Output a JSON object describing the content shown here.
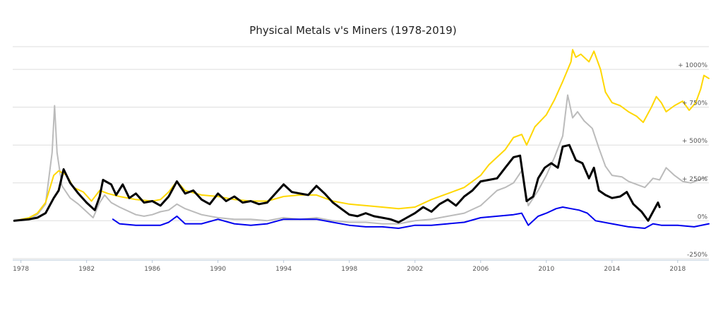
{
  "chart_data": {
    "type": "line",
    "title": "Physical Metals v's Miners (1978-2019)",
    "xlabel": "",
    "ylabel": "",
    "x_ticks": [
      "1978",
      "1982",
      "1986",
      "1990",
      "1994",
      "1998",
      "2002",
      "2006",
      "2010",
      "2014",
      "2018"
    ],
    "y_ticks": [
      "+ 1000%",
      "+ 750%",
      "+ 500%",
      "+ 250%",
      "0%",
      "-250%"
    ],
    "y_tick_values": [
      1000,
      750,
      500,
      250,
      0,
      -250
    ],
    "xlim": [
      1977.5,
      2019.9
    ],
    "ylim": [
      -260,
      1150
    ],
    "grid": true,
    "legend": "none",
    "series": [
      {
        "color": "#bbbbbb",
        "width": 2,
        "points": [
          [
            1977.6,
            0
          ],
          [
            1978.5,
            10
          ],
          [
            1979.0,
            40
          ],
          [
            1979.5,
            110
          ],
          [
            1979.9,
            450
          ],
          [
            1980.05,
            760
          ],
          [
            1980.2,
            450
          ],
          [
            1980.5,
            230
          ],
          [
            1981.0,
            150
          ],
          [
            1981.5,
            110
          ],
          [
            1982.0,
            60
          ],
          [
            1982.4,
            20
          ],
          [
            1982.8,
            120
          ],
          [
            1983.1,
            170
          ],
          [
            1983.5,
            120
          ],
          [
            1984.0,
            90
          ],
          [
            1985.0,
            40
          ],
          [
            1985.5,
            30
          ],
          [
            1986.0,
            40
          ],
          [
            1986.5,
            60
          ],
          [
            1987.0,
            70
          ],
          [
            1987.5,
            110
          ],
          [
            1988.0,
            80
          ],
          [
            1989.0,
            40
          ],
          [
            1990.0,
            20
          ],
          [
            1991.0,
            10
          ],
          [
            1992.0,
            10
          ],
          [
            1993.0,
            0
          ],
          [
            1994.0,
            20
          ],
          [
            1995.0,
            10
          ],
          [
            1996.0,
            20
          ],
          [
            1997.0,
            0
          ],
          [
            1998.0,
            -10
          ],
          [
            1999.0,
            -10
          ],
          [
            2000.0,
            -20
          ],
          [
            2001.0,
            -20
          ],
          [
            2002.0,
            0
          ],
          [
            2003.0,
            10
          ],
          [
            2004.0,
            30
          ],
          [
            2005.0,
            50
          ],
          [
            2006.0,
            100
          ],
          [
            2006.5,
            150
          ],
          [
            2007.0,
            200
          ],
          [
            2007.5,
            220
          ],
          [
            2008.0,
            250
          ],
          [
            2008.5,
            330
          ],
          [
            2008.9,
            100
          ],
          [
            2009.5,
            200
          ],
          [
            2010.0,
            300
          ],
          [
            2010.5,
            420
          ],
          [
            2011.0,
            560
          ],
          [
            2011.3,
            830
          ],
          [
            2011.6,
            680
          ],
          [
            2011.9,
            720
          ],
          [
            2012.3,
            660
          ],
          [
            2012.8,
            610
          ],
          [
            2013.2,
            480
          ],
          [
            2013.6,
            360
          ],
          [
            2014.0,
            300
          ],
          [
            2014.6,
            290
          ],
          [
            2015.0,
            260
          ],
          [
            2015.5,
            240
          ],
          [
            2016.0,
            220
          ],
          [
            2016.5,
            280
          ],
          [
            2016.9,
            270
          ],
          [
            2017.3,
            350
          ],
          [
            2017.8,
            300
          ],
          [
            2018.3,
            260
          ],
          [
            2018.8,
            250
          ],
          [
            2019.3,
            270
          ],
          [
            2019.8,
            290
          ]
        ]
      },
      {
        "color": "#ffd700",
        "width": 2,
        "points": [
          [
            1977.6,
            0
          ],
          [
            1978.5,
            20
          ],
          [
            1979.0,
            50
          ],
          [
            1979.5,
            120
          ],
          [
            1980.0,
            300
          ],
          [
            1980.3,
            330
          ],
          [
            1980.8,
            300
          ],
          [
            1981.2,
            220
          ],
          [
            1981.8,
            190
          ],
          [
            1982.3,
            130
          ],
          [
            1982.8,
            200
          ],
          [
            1983.3,
            180
          ],
          [
            1984.0,
            160
          ],
          [
            1985.0,
            140
          ],
          [
            1986.0,
            130
          ],
          [
            1986.5,
            140
          ],
          [
            1987.0,
            190
          ],
          [
            1987.5,
            260
          ],
          [
            1988.0,
            200
          ],
          [
            1989.0,
            170
          ],
          [
            1990.0,
            160
          ],
          [
            1991.0,
            140
          ],
          [
            1992.0,
            130
          ],
          [
            1993.0,
            130
          ],
          [
            1994.0,
            160
          ],
          [
            1995.0,
            170
          ],
          [
            1996.0,
            170
          ],
          [
            1997.0,
            130
          ],
          [
            1998.0,
            110
          ],
          [
            1999.0,
            100
          ],
          [
            2000.0,
            90
          ],
          [
            2001.0,
            80
          ],
          [
            2002.0,
            90
          ],
          [
            2003.0,
            140
          ],
          [
            2004.0,
            180
          ],
          [
            2005.0,
            220
          ],
          [
            2006.0,
            300
          ],
          [
            2006.5,
            370
          ],
          [
            2007.0,
            420
          ],
          [
            2007.5,
            470
          ],
          [
            2008.0,
            550
          ],
          [
            2008.5,
            570
          ],
          [
            2008.8,
            500
          ],
          [
            2009.3,
            620
          ],
          [
            2010.0,
            700
          ],
          [
            2010.5,
            800
          ],
          [
            2011.0,
            920
          ],
          [
            2011.5,
            1050
          ],
          [
            2011.6,
            1130
          ],
          [
            2011.8,
            1080
          ],
          [
            2012.1,
            1100
          ],
          [
            2012.6,
            1050
          ],
          [
            2012.9,
            1120
          ],
          [
            2013.3,
            1000
          ],
          [
            2013.6,
            850
          ],
          [
            2014.0,
            780
          ],
          [
            2014.5,
            760
          ],
          [
            2015.0,
            720
          ],
          [
            2015.5,
            690
          ],
          [
            2015.9,
            650
          ],
          [
            2016.4,
            750
          ],
          [
            2016.7,
            820
          ],
          [
            2017.0,
            780
          ],
          [
            2017.3,
            720
          ],
          [
            2017.8,
            760
          ],
          [
            2018.3,
            790
          ],
          [
            2018.7,
            730
          ],
          [
            2019.1,
            780
          ],
          [
            2019.4,
            870
          ],
          [
            2019.6,
            960
          ],
          [
            2019.9,
            940
          ]
        ]
      },
      {
        "color": "#000000",
        "width": 3,
        "points": [
          [
            1977.6,
            0
          ],
          [
            1978.5,
            10
          ],
          [
            1979.0,
            20
          ],
          [
            1979.5,
            50
          ],
          [
            1980.0,
            150
          ],
          [
            1980.3,
            200
          ],
          [
            1980.6,
            340
          ],
          [
            1981.0,
            250
          ],
          [
            1981.5,
            180
          ],
          [
            1982.0,
            120
          ],
          [
            1982.5,
            70
          ],
          [
            1982.8,
            160
          ],
          [
            1983.0,
            270
          ],
          [
            1983.5,
            240
          ],
          [
            1983.8,
            170
          ],
          [
            1984.2,
            240
          ],
          [
            1984.6,
            150
          ],
          [
            1985.0,
            180
          ],
          [
            1985.5,
            120
          ],
          [
            1986.0,
            130
          ],
          [
            1986.5,
            100
          ],
          [
            1987.0,
            160
          ],
          [
            1987.5,
            260
          ],
          [
            1988.0,
            180
          ],
          [
            1988.5,
            200
          ],
          [
            1989.0,
            140
          ],
          [
            1989.5,
            110
          ],
          [
            1990.0,
            180
          ],
          [
            1990.5,
            130
          ],
          [
            1991.0,
            160
          ],
          [
            1991.5,
            120
          ],
          [
            1992.0,
            130
          ],
          [
            1992.5,
            110
          ],
          [
            1993.0,
            120
          ],
          [
            1993.5,
            180
          ],
          [
            1994.0,
            240
          ],
          [
            1994.5,
            190
          ],
          [
            1995.0,
            180
          ],
          [
            1995.5,
            170
          ],
          [
            1996.0,
            230
          ],
          [
            1996.5,
            180
          ],
          [
            1997.0,
            120
          ],
          [
            1997.5,
            80
          ],
          [
            1998.0,
            40
          ],
          [
            1998.5,
            30
          ],
          [
            1999.0,
            50
          ],
          [
            1999.5,
            30
          ],
          [
            2000.0,
            20
          ],
          [
            2000.5,
            10
          ],
          [
            2001.0,
            -10
          ],
          [
            2001.5,
            20
          ],
          [
            2002.0,
            50
          ],
          [
            2002.5,
            90
          ],
          [
            2003.0,
            60
          ],
          [
            2003.5,
            110
          ],
          [
            2004.0,
            140
          ],
          [
            2004.5,
            100
          ],
          [
            2005.0,
            160
          ],
          [
            2005.5,
            200
          ],
          [
            2006.0,
            260
          ],
          [
            2006.5,
            270
          ],
          [
            2007.0,
            280
          ],
          [
            2007.5,
            350
          ],
          [
            2008.0,
            420
          ],
          [
            2008.4,
            430
          ],
          [
            2008.8,
            130
          ],
          [
            2009.2,
            160
          ],
          [
            2009.5,
            280
          ],
          [
            2009.9,
            350
          ],
          [
            2010.3,
            380
          ],
          [
            2010.7,
            350
          ],
          [
            2011.0,
            490
          ],
          [
            2011.4,
            500
          ],
          [
            2011.8,
            400
          ],
          [
            2012.2,
            380
          ],
          [
            2012.6,
            280
          ],
          [
            2012.9,
            350
          ],
          [
            2013.2,
            200
          ],
          [
            2013.6,
            170
          ],
          [
            2014.0,
            150
          ],
          [
            2014.5,
            160
          ],
          [
            2014.9,
            190
          ],
          [
            2015.3,
            110
          ],
          [
            2015.8,
            60
          ],
          [
            2016.2,
            0
          ],
          [
            2016.5,
            60
          ],
          [
            2016.8,
            120
          ],
          [
            2016.9,
            90
          ]
        ]
      },
      {
        "color": "#0000ee",
        "width": 2,
        "points": [
          [
            1983.6,
            10
          ],
          [
            1984.0,
            -20
          ],
          [
            1985.0,
            -30
          ],
          [
            1986.0,
            -30
          ],
          [
            1986.5,
            -30
          ],
          [
            1987.0,
            -10
          ],
          [
            1987.5,
            30
          ],
          [
            1988.0,
            -20
          ],
          [
            1989.0,
            -20
          ],
          [
            1990.0,
            10
          ],
          [
            1991.0,
            -20
          ],
          [
            1992.0,
            -30
          ],
          [
            1993.0,
            -20
          ],
          [
            1994.0,
            10
          ],
          [
            1995.0,
            10
          ],
          [
            1996.0,
            10
          ],
          [
            1997.0,
            -10
          ],
          [
            1998.0,
            -30
          ],
          [
            1999.0,
            -40
          ],
          [
            2000.0,
            -40
          ],
          [
            2001.0,
            -50
          ],
          [
            2002.0,
            -30
          ],
          [
            2003.0,
            -30
          ],
          [
            2004.0,
            -20
          ],
          [
            2005.0,
            -10
          ],
          [
            2006.0,
            20
          ],
          [
            2007.0,
            30
          ],
          [
            2008.0,
            40
          ],
          [
            2008.5,
            50
          ],
          [
            2008.9,
            -30
          ],
          [
            2009.5,
            30
          ],
          [
            2010.0,
            50
          ],
          [
            2010.6,
            80
          ],
          [
            2011.0,
            90
          ],
          [
            2011.5,
            80
          ],
          [
            2012.0,
            70
          ],
          [
            2012.5,
            50
          ],
          [
            2013.0,
            0
          ],
          [
            2014.0,
            -20
          ],
          [
            2015.0,
            -40
          ],
          [
            2016.0,
            -50
          ],
          [
            2016.5,
            -20
          ],
          [
            2017.0,
            -30
          ],
          [
            2018.0,
            -30
          ],
          [
            2019.0,
            -40
          ],
          [
            2019.9,
            -20
          ]
        ]
      }
    ]
  }
}
